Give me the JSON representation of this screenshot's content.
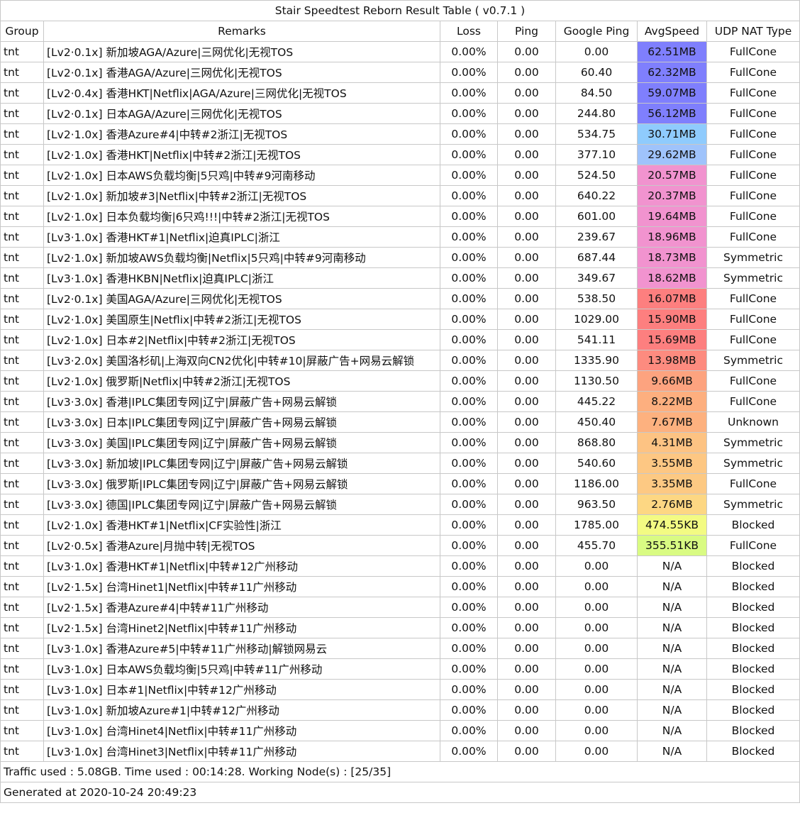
{
  "title": "Stair Speedtest Reborn Result Table ( v0.7.1 )",
  "columns": [
    "Group",
    "Remarks",
    "Loss",
    "Ping",
    "Google Ping",
    "AvgSpeed",
    "UDP NAT Type"
  ],
  "rows": [
    {
      "group": "tnt",
      "remarks": "[Lv2·0.1x] 新加坡AGA/Azure|三网优化|无视TOS",
      "loss": "0.00%",
      "ping": "0.00",
      "google_ping": "0.00",
      "avg_speed": "62.51MB",
      "speed_color": "#7f7ffd",
      "nat": "FullCone"
    },
    {
      "group": "tnt",
      "remarks": "[Lv2·0.1x] 香港AGA/Azure|三网优化|无视TOS",
      "loss": "0.00%",
      "ping": "0.00",
      "google_ping": "60.40",
      "avg_speed": "62.32MB",
      "speed_color": "#7f7ffd",
      "nat": "FullCone"
    },
    {
      "group": "tnt",
      "remarks": "[Lv2·0.4x] 香港HKT|Netflix|AGA/Azure|三网优化|无视TOS",
      "loss": "0.00%",
      "ping": "0.00",
      "google_ping": "84.50",
      "avg_speed": "59.07MB",
      "speed_color": "#7f7ffd",
      "nat": "FullCone"
    },
    {
      "group": "tnt",
      "remarks": "[Lv2·0.1x] 日本AGA/Azure|三网优化|无视TOS",
      "loss": "0.00%",
      "ping": "0.00",
      "google_ping": "244.80",
      "avg_speed": "56.12MB",
      "speed_color": "#7f7ffd",
      "nat": "FullCone"
    },
    {
      "group": "tnt",
      "remarks": "[Lv2·1.0x] 香港Azure#4|中转#2浙江|无视TOS",
      "loss": "0.00%",
      "ping": "0.00",
      "google_ping": "534.75",
      "avg_speed": "30.71MB",
      "speed_color": "#8fcbfd",
      "nat": "FullCone"
    },
    {
      "group": "tnt",
      "remarks": "[Lv2·1.0x] 香港HKT|Netflix|中转#2浙江|无视TOS",
      "loss": "0.00%",
      "ping": "0.00",
      "google_ping": "377.10",
      "avg_speed": "29.62MB",
      "speed_color": "#9fc3fb",
      "nat": "FullCone"
    },
    {
      "group": "tnt",
      "remarks": "[Lv2·1.0x] 日本AWS负载均衡|5只鸡|中转#9河南移动",
      "loss": "0.00%",
      "ping": "0.00",
      "google_ping": "524.50",
      "avg_speed": "20.57MB",
      "speed_color": "#f193cf",
      "nat": "FullCone"
    },
    {
      "group": "tnt",
      "remarks": "[Lv2·1.0x] 新加坡#3|Netflix|中转#2浙江|无视TOS",
      "loss": "0.00%",
      "ping": "0.00",
      "google_ping": "640.22",
      "avg_speed": "20.37MB",
      "speed_color": "#f193cf",
      "nat": "FullCone"
    },
    {
      "group": "tnt",
      "remarks": "[Lv2·1.0x] 日本负载均衡|6只鸡!!!|中转#2浙江|无视TOS",
      "loss": "0.00%",
      "ping": "0.00",
      "google_ping": "601.00",
      "avg_speed": "19.64MB",
      "speed_color": "#f193cf",
      "nat": "FullCone"
    },
    {
      "group": "tnt",
      "remarks": "[Lv3·1.0x] 香港HKT#1|Netflix|迫真IPLC|浙江",
      "loss": "0.00%",
      "ping": "0.00",
      "google_ping": "239.67",
      "avg_speed": "18.96MB",
      "speed_color": "#f193cf",
      "nat": "FullCone"
    },
    {
      "group": "tnt",
      "remarks": "[Lv2·1.0x] 新加坡AWS负载均衡|Netflix|5只鸡|中转#9河南移动",
      "loss": "0.00%",
      "ping": "0.00",
      "google_ping": "687.44",
      "avg_speed": "18.73MB",
      "speed_color": "#f193cf",
      "nat": "Symmetric"
    },
    {
      "group": "tnt",
      "remarks": "[Lv3·1.0x] 香港HKBN|Netflix|迫真IPLC|浙江",
      "loss": "0.00%",
      "ping": "0.00",
      "google_ping": "349.67",
      "avg_speed": "18.62MB",
      "speed_color": "#f193cf",
      "nat": "Symmetric"
    },
    {
      "group": "tnt",
      "remarks": "[Lv2·0.1x] 美国AGA/Azure|三网优化|无视TOS",
      "loss": "0.00%",
      "ping": "0.00",
      "google_ping": "538.50",
      "avg_speed": "16.07MB",
      "speed_color": "#fd7f7f",
      "nat": "FullCone"
    },
    {
      "group": "tnt",
      "remarks": "[Lv2·1.0x] 美国原生|Netflix|中转#2浙江|无视TOS",
      "loss": "0.00%",
      "ping": "0.00",
      "google_ping": "1029.00",
      "avg_speed": "15.90MB",
      "speed_color": "#fd7f7f",
      "nat": "FullCone"
    },
    {
      "group": "tnt",
      "remarks": "[Lv2·1.0x] 日本#2|Netflix|中转#2浙江|无视TOS",
      "loss": "0.00%",
      "ping": "0.00",
      "google_ping": "541.11",
      "avg_speed": "15.69MB",
      "speed_color": "#fd7f7f",
      "nat": "FullCone"
    },
    {
      "group": "tnt",
      "remarks": "[Lv3·2.0x] 美国洛杉矶|上海双向CN2优化|中转#10|屏蔽广告+网易云解锁",
      "loss": "0.00%",
      "ping": "0.00",
      "google_ping": "1335.90",
      "avg_speed": "13.98MB",
      "speed_color": "#fd8b7f",
      "nat": "Symmetric"
    },
    {
      "group": "tnt",
      "remarks": "[Lv2·1.0x] 俄罗斯|Netflix|中转#2浙江|无视TOS",
      "loss": "0.00%",
      "ping": "0.00",
      "google_ping": "1130.50",
      "avg_speed": "9.66MB",
      "speed_color": "#fda37f",
      "nat": "FullCone"
    },
    {
      "group": "tnt",
      "remarks": "[Lv3·3.0x] 香港|IPLC集团专网|辽宁|屏蔽广告+网易云解锁",
      "loss": "0.00%",
      "ping": "0.00",
      "google_ping": "445.22",
      "avg_speed": "8.22MB",
      "speed_color": "#fdaf7f",
      "nat": "FullCone"
    },
    {
      "group": "tnt",
      "remarks": "[Lv3·3.0x] 日本|IPLC集团专网|辽宁|屏蔽广告+网易云解锁",
      "loss": "0.00%",
      "ping": "0.00",
      "google_ping": "450.40",
      "avg_speed": "7.67MB",
      "speed_color": "#fdb17f",
      "nat": "Unknown"
    },
    {
      "group": "tnt",
      "remarks": "[Lv3·3.0x] 美国|IPLC集团专网|辽宁|屏蔽广告+网易云解锁",
      "loss": "0.00%",
      "ping": "0.00",
      "google_ping": "868.80",
      "avg_speed": "4.31MB",
      "speed_color": "#fdc383",
      "nat": "Symmetric"
    },
    {
      "group": "tnt",
      "remarks": "[Lv3·3.0x] 新加坡|IPLC集团专网|辽宁|屏蔽广告+网易云解锁",
      "loss": "0.00%",
      "ping": "0.00",
      "google_ping": "540.60",
      "avg_speed": "3.55MB",
      "speed_color": "#fdc783",
      "nat": "Symmetric"
    },
    {
      "group": "tnt",
      "remarks": "[Lv3·3.0x] 俄罗斯|IPLC集团专网|辽宁|屏蔽广告+网易云解锁",
      "loss": "0.00%",
      "ping": "0.00",
      "google_ping": "1186.00",
      "avg_speed": "3.35MB",
      "speed_color": "#fdc983",
      "nat": "FullCone"
    },
    {
      "group": "tnt",
      "remarks": "[Lv3·3.0x] 德国|IPLC集团专网|辽宁|屏蔽广告+网易云解锁",
      "loss": "0.00%",
      "ping": "0.00",
      "google_ping": "963.50",
      "avg_speed": "2.76MB",
      "speed_color": "#fdd783",
      "nat": "Symmetric"
    },
    {
      "group": "tnt",
      "remarks": "[Lv2·1.0x] 香港HKT#1|Netflix|CF实验性|浙江",
      "loss": "0.00%",
      "ping": "0.00",
      "google_ping": "1785.00",
      "avg_speed": "474.55KB",
      "speed_color": "#f3fb83",
      "nat": "Blocked"
    },
    {
      "group": "tnt",
      "remarks": "[Lv2·0.5x] 香港Azure|月抛中转|无视TOS",
      "loss": "0.00%",
      "ping": "0.00",
      "google_ping": "455.70",
      "avg_speed": "355.51KB",
      "speed_color": "#d9fb83",
      "nat": "FullCone"
    },
    {
      "group": "tnt",
      "remarks": "[Lv3·1.0x] 香港HKT#1|Netflix|中转#12广州移动",
      "loss": "0.00%",
      "ping": "0.00",
      "google_ping": "0.00",
      "avg_speed": "N/A",
      "speed_color": "#ffffff",
      "nat": "Blocked"
    },
    {
      "group": "tnt",
      "remarks": "[Lv2·1.5x] 台湾Hinet1|Netflix|中转#11广州移动",
      "loss": "0.00%",
      "ping": "0.00",
      "google_ping": "0.00",
      "avg_speed": "N/A",
      "speed_color": "#ffffff",
      "nat": "Blocked"
    },
    {
      "group": "tnt",
      "remarks": "[Lv2·1.5x] 香港Azure#4|中转#11广州移动",
      "loss": "0.00%",
      "ping": "0.00",
      "google_ping": "0.00",
      "avg_speed": "N/A",
      "speed_color": "#ffffff",
      "nat": "Blocked"
    },
    {
      "group": "tnt",
      "remarks": "[Lv2·1.5x] 台湾Hinet2|Netflix|中转#11广州移动",
      "loss": "0.00%",
      "ping": "0.00",
      "google_ping": "0.00",
      "avg_speed": "N/A",
      "speed_color": "#ffffff",
      "nat": "Blocked"
    },
    {
      "group": "tnt",
      "remarks": "[Lv3·1.0x] 香港Azure#5|中转#11广州移动|解锁网易云",
      "loss": "0.00%",
      "ping": "0.00",
      "google_ping": "0.00",
      "avg_speed": "N/A",
      "speed_color": "#ffffff",
      "nat": "Blocked"
    },
    {
      "group": "tnt",
      "remarks": "[Lv3·1.0x] 日本AWS负载均衡|5只鸡|中转#11广州移动",
      "loss": "0.00%",
      "ping": "0.00",
      "google_ping": "0.00",
      "avg_speed": "N/A",
      "speed_color": "#ffffff",
      "nat": "Blocked"
    },
    {
      "group": "tnt",
      "remarks": "[Lv3·1.0x] 日本#1|Netflix|中转#12广州移动",
      "loss": "0.00%",
      "ping": "0.00",
      "google_ping": "0.00",
      "avg_speed": "N/A",
      "speed_color": "#ffffff",
      "nat": "Blocked"
    },
    {
      "group": "tnt",
      "remarks": "[Lv3·1.0x] 新加坡Azure#1|中转#12广州移动",
      "loss": "0.00%",
      "ping": "0.00",
      "google_ping": "0.00",
      "avg_speed": "N/A",
      "speed_color": "#ffffff",
      "nat": "Blocked"
    },
    {
      "group": "tnt",
      "remarks": "[Lv3·1.0x] 台湾Hinet4|Netflix|中转#11广州移动",
      "loss": "0.00%",
      "ping": "0.00",
      "google_ping": "0.00",
      "avg_speed": "N/A",
      "speed_color": "#ffffff",
      "nat": "Blocked"
    },
    {
      "group": "tnt",
      "remarks": "[Lv3·1.0x] 台湾Hinet3|Netflix|中转#11广州移动",
      "loss": "0.00%",
      "ping": "0.00",
      "google_ping": "0.00",
      "avg_speed": "N/A",
      "speed_color": "#ffffff",
      "nat": "Blocked"
    }
  ],
  "footer": {
    "traffic": "Traffic used : 5.08GB. Time used : 00:14:28. Working Node(s) : [25/35]",
    "generated": "Generated at 2020-10-24 20:49:23"
  }
}
